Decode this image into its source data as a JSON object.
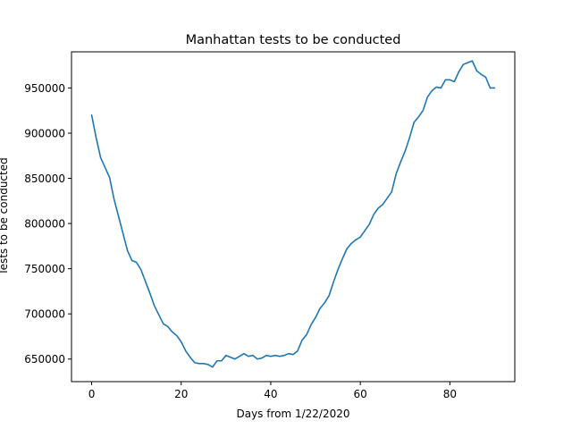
{
  "colors": {
    "series": "#1f77b4",
    "background": "#ffffff",
    "axes": "#000000"
  },
  "chart_data": {
    "type": "line",
    "title": "Manhattan tests to be conducted",
    "xlabel": "Days from 1/22/2020",
    "ylabel": "Tests to be conducted",
    "xlim": [
      -4.5,
      94.5
    ],
    "ylim": [
      625000,
      990000
    ],
    "xticks": [
      0,
      20,
      40,
      60,
      80
    ],
    "xtick_labels": [
      "0",
      "20",
      "40",
      "60",
      "80"
    ],
    "yticks": [
      650000,
      700000,
      750000,
      800000,
      850000,
      900000,
      950000
    ],
    "ytick_labels": [
      "650000",
      "700000",
      "750000",
      "800000",
      "850000",
      "900000",
      "950000"
    ],
    "grid": false,
    "legend": "none",
    "series": [
      {
        "x": [
          0,
          1,
          2,
          3,
          4,
          5,
          6,
          7,
          8,
          9,
          10,
          11,
          12,
          13,
          14,
          15,
          16,
          17,
          18,
          19,
          20,
          21,
          22,
          23,
          24,
          25,
          26,
          27,
          28,
          29,
          30,
          31,
          32,
          33,
          34,
          35,
          36,
          37,
          38,
          39,
          40,
          41,
          42,
          43,
          44,
          45,
          46,
          47,
          48,
          49,
          50,
          51,
          52,
          53,
          54,
          55,
          56,
          57,
          58,
          59,
          60,
          61,
          62,
          63,
          64,
          65,
          66,
          67,
          68,
          69,
          70,
          71,
          72,
          73,
          74,
          75,
          76,
          77,
          78,
          79,
          80,
          81,
          82,
          83,
          84,
          85,
          86,
          87,
          88,
          89,
          90
        ],
        "values": [
          920000,
          895000,
          873000,
          862000,
          851000,
          827000,
          808000,
          789000,
          770000,
          759000,
          757000,
          749000,
          736000,
          723000,
          709000,
          699000,
          689000,
          686000,
          680000,
          676000,
          669000,
          659000,
          652000,
          646000,
          645000,
          645000,
          644000,
          641000,
          648000,
          648000,
          654000,
          652000,
          650000,
          653000,
          656000,
          653000,
          654000,
          650000,
          651000,
          654000,
          653000,
          654000,
          653000,
          654000,
          656000,
          655000,
          659000,
          671000,
          677000,
          688000,
          696000,
          706000,
          712000,
          720000,
          735000,
          749000,
          761000,
          772000,
          778000,
          782000,
          785000,
          792000,
          799000,
          810000,
          817000,
          821000,
          828000,
          835000,
          855000,
          868000,
          880000,
          895000,
          912000,
          918000,
          925000,
          940000,
          947000,
          951000,
          950000,
          959000,
          959000,
          957000,
          968000,
          976000,
          978000,
          980000,
          969000,
          965000,
          962000,
          950000,
          950000
        ]
      }
    ]
  }
}
